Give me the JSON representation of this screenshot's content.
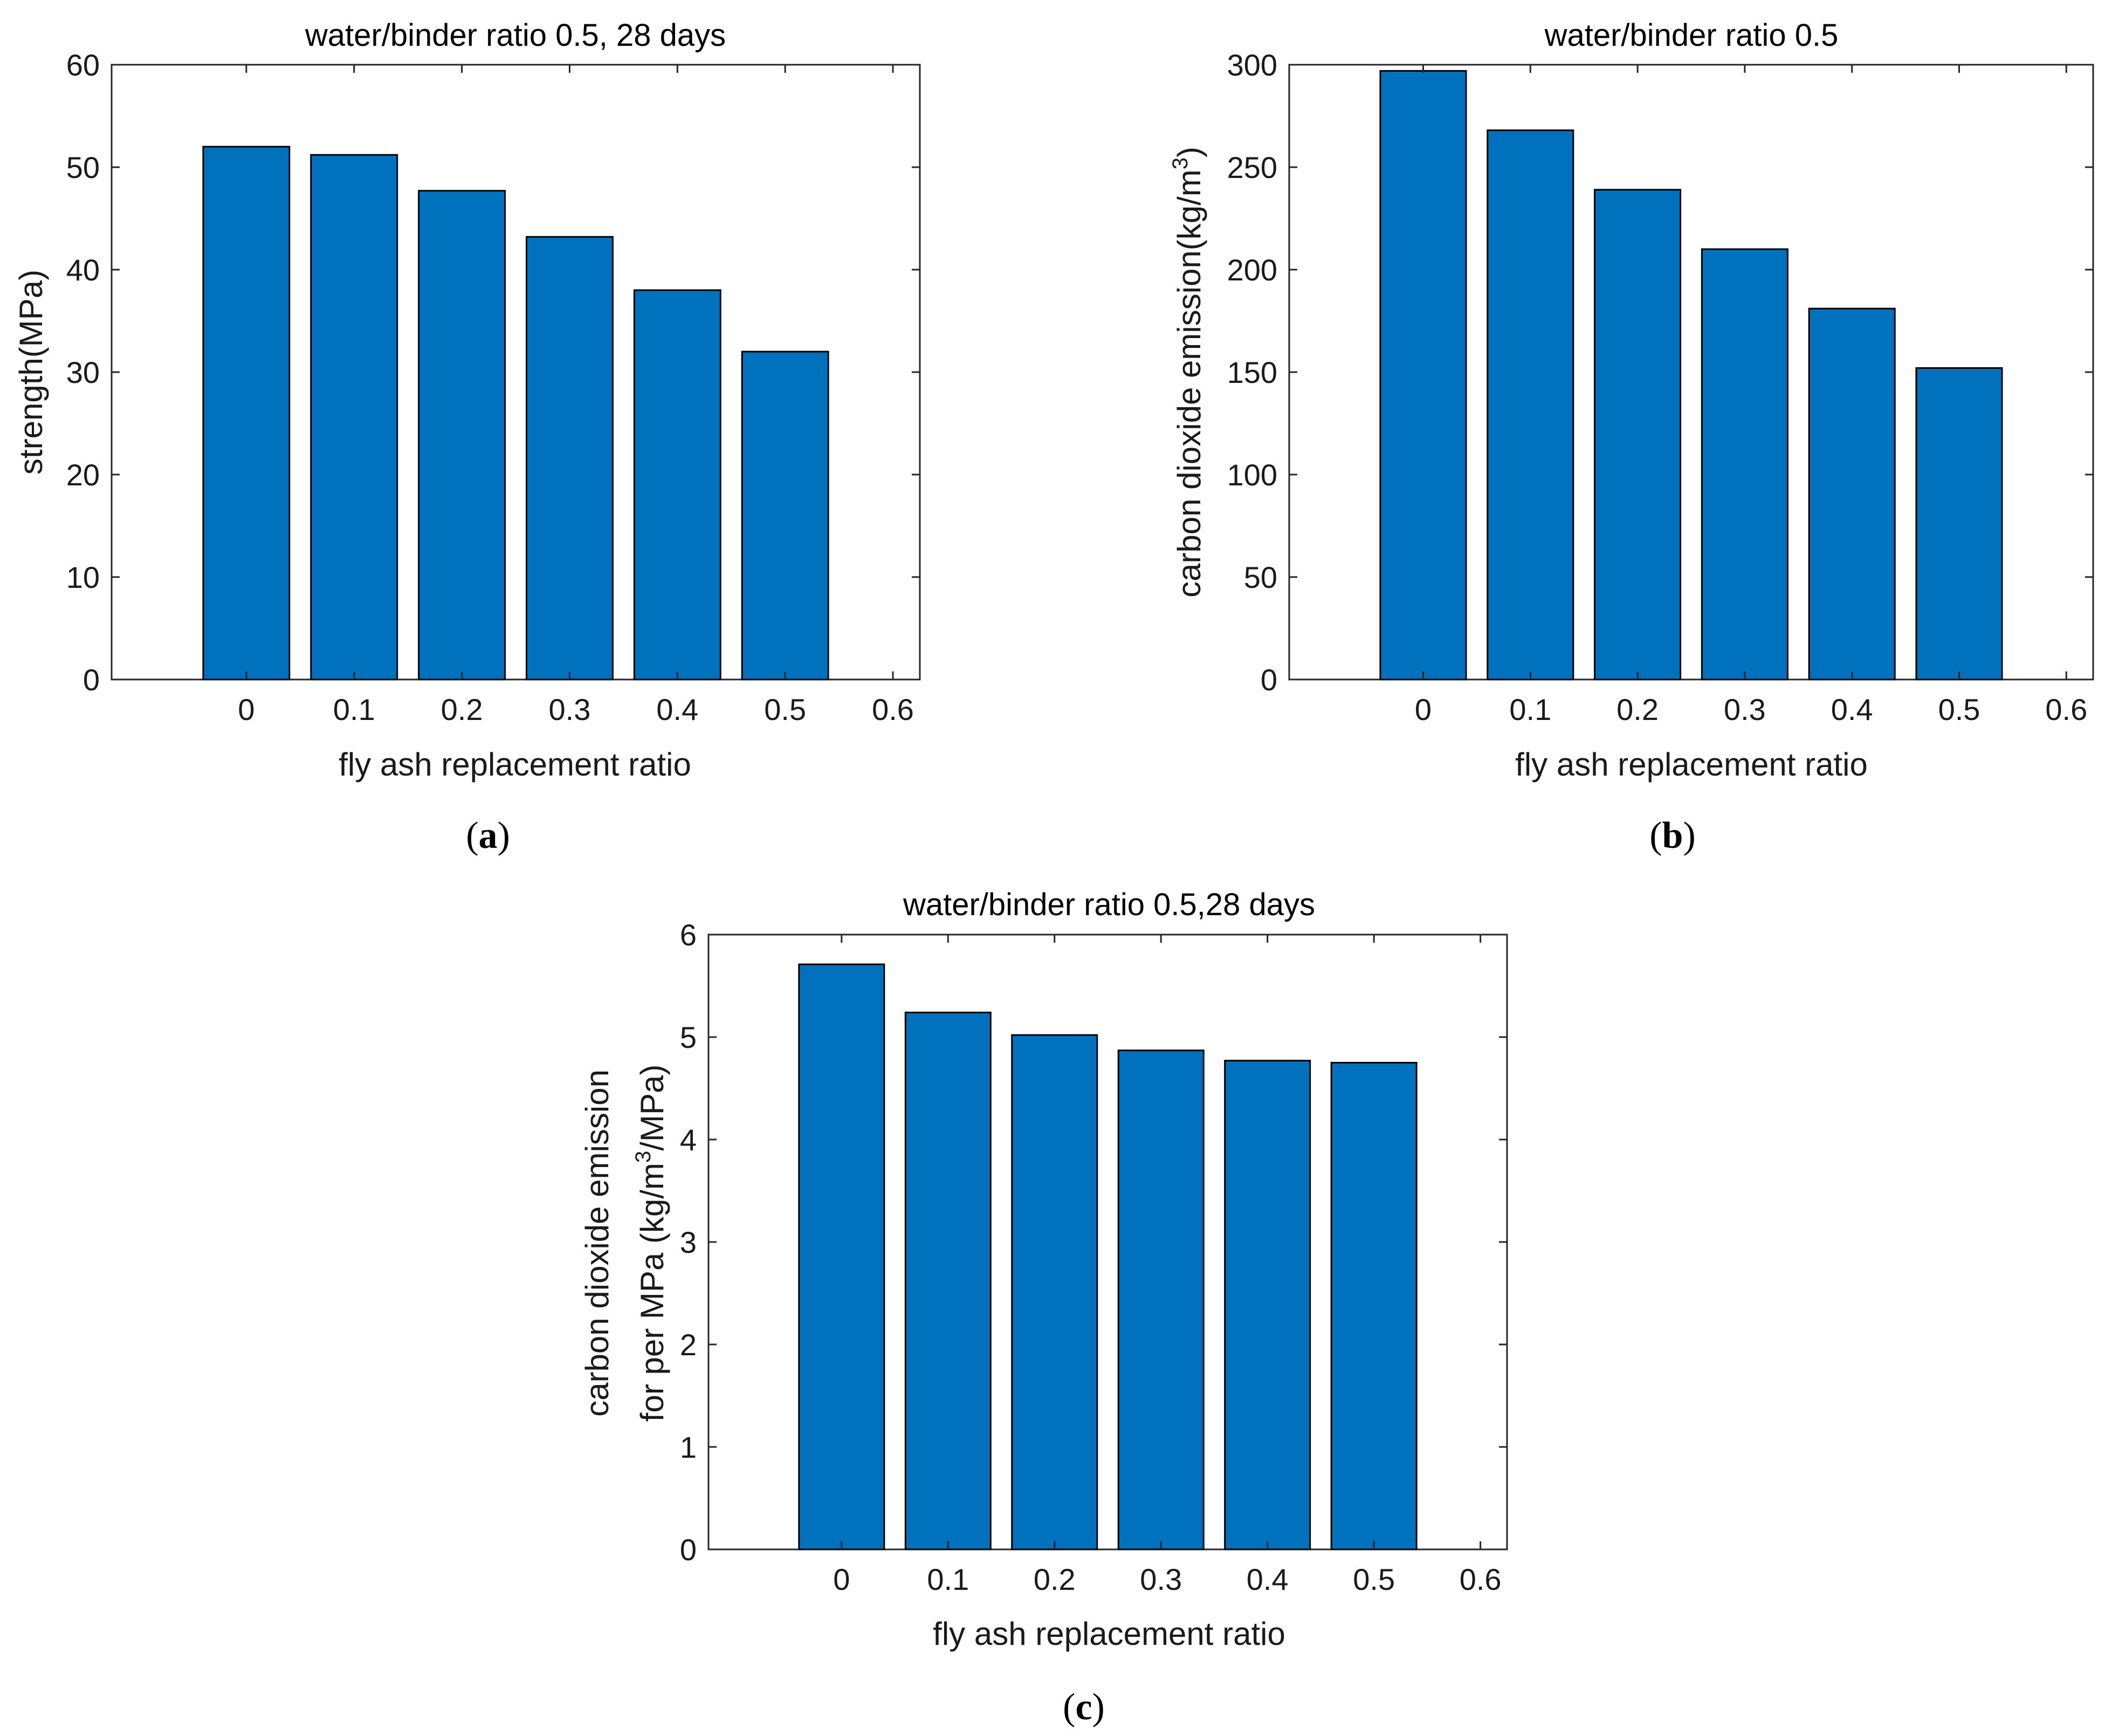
{
  "colors": {
    "bar": "#0072BD",
    "axis": "#262626",
    "background": "#ffffff"
  },
  "chart_data": [
    {
      "panel": "a",
      "type": "bar",
      "title": "water/binder ratio 0.5, 28 days",
      "xlabel": "fly ash replacement ratio",
      "ylabel": "strength(MPa)",
      "x": [
        0,
        0.1,
        0.2,
        0.3,
        0.4,
        0.5
      ],
      "values": [
        52.0,
        51.2,
        47.7,
        43.2,
        38.0,
        32.0
      ],
      "xlim": [
        -0.125,
        0.625
      ],
      "ylim": [
        0,
        60
      ],
      "xticks": [
        0,
        0.1,
        0.2,
        0.3,
        0.4,
        0.5,
        0.6
      ],
      "xtick_labels": [
        "0",
        "0.1",
        "0.2",
        "0.3",
        "0.4",
        "0.5",
        "0.6"
      ],
      "yticks": [
        0,
        10,
        20,
        30,
        40,
        50,
        60
      ],
      "ytick_labels": [
        "0",
        "10",
        "20",
        "30",
        "40",
        "50",
        "60"
      ]
    },
    {
      "panel": "b",
      "type": "bar",
      "title": "water/binder ratio 0.5",
      "xlabel": "fly ash replacement ratio",
      "ylabel": "carbon dioxide emission(kg/m",
      "ylabel_sup": "3",
      "ylabel_tail": ")",
      "x": [
        0,
        0.1,
        0.2,
        0.3,
        0.4,
        0.5
      ],
      "values": [
        297,
        268,
        239,
        210,
        181,
        152
      ],
      "xlim": [
        -0.125,
        0.625
      ],
      "ylim": [
        0,
        300
      ],
      "xticks": [
        0,
        0.1,
        0.2,
        0.3,
        0.4,
        0.5,
        0.6
      ],
      "xtick_labels": [
        "0",
        "0.1",
        "0.2",
        "0.3",
        "0.4",
        "0.5",
        "0.6"
      ],
      "yticks": [
        0,
        50,
        100,
        150,
        200,
        250,
        300
      ],
      "ytick_labels": [
        "0",
        "50",
        "100",
        "150",
        "200",
        "250",
        "300"
      ]
    },
    {
      "panel": "c",
      "type": "bar",
      "title": "water/binder ratio 0.5,28 days",
      "xlabel": "fly ash replacement ratio",
      "ylabel_line1": "carbon dioxide emission",
      "ylabel_line2": "for per MPa (kg/m",
      "ylabel_line2_sup": "3",
      "ylabel_line2_tail": "/MPa)",
      "x": [
        0,
        0.1,
        0.2,
        0.3,
        0.4,
        0.5
      ],
      "values": [
        5.71,
        5.24,
        5.02,
        4.87,
        4.77,
        4.75
      ],
      "xlim": [
        -0.125,
        0.625
      ],
      "ylim": [
        0,
        6
      ],
      "xticks": [
        0,
        0.1,
        0.2,
        0.3,
        0.4,
        0.5,
        0.6
      ],
      "xtick_labels": [
        "0",
        "0.1",
        "0.2",
        "0.3",
        "0.4",
        "0.5",
        "0.6"
      ],
      "yticks": [
        0,
        1,
        2,
        3,
        4,
        5,
        6
      ],
      "ytick_labels": [
        "0",
        "1",
        "2",
        "3",
        "4",
        "5",
        "6"
      ]
    }
  ],
  "panel_labels": {
    "a": {
      "open": "(",
      "letter": "a",
      "close": ")"
    },
    "b": {
      "open": "(",
      "letter": "b",
      "close": ")"
    },
    "c": {
      "open": "(",
      "letter": "c",
      "close": ")"
    }
  }
}
